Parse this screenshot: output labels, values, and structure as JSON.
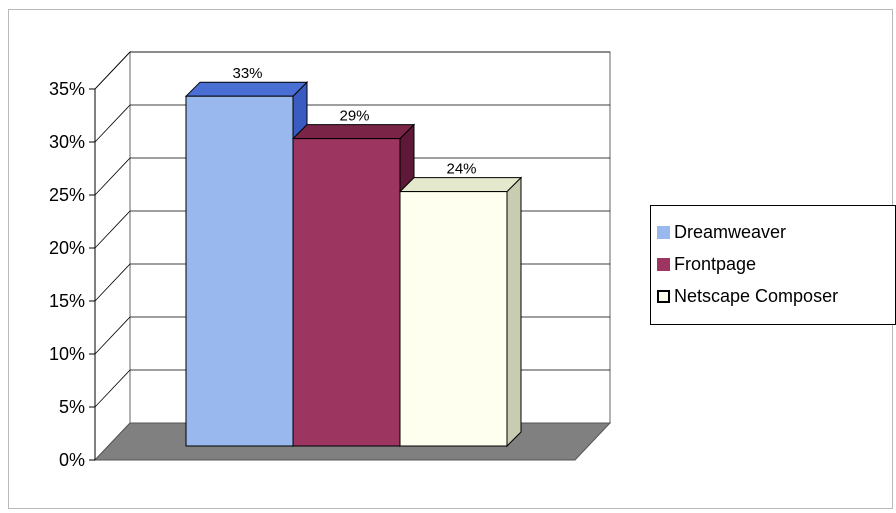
{
  "chart_data": {
    "type": "bar",
    "title": "",
    "xlabel": "",
    "ylabel": "",
    "ylim": [
      0,
      35
    ],
    "yticks": [
      "0%",
      "5%",
      "10%",
      "15%",
      "20%",
      "25%",
      "30%",
      "35%"
    ],
    "grid": true,
    "three_d": true,
    "legend_position": "right",
    "series": [
      {
        "name": "Dreamweaver",
        "value": 33,
        "label": "33%",
        "color": "#99b8ee",
        "side_color": "#3a5bbf",
        "top_color": "#4a6fd4"
      },
      {
        "name": "Frontpage",
        "value": 29,
        "label": "29%",
        "color": "#9c3560",
        "side_color": "#5e1838",
        "top_color": "#7a2448"
      },
      {
        "name": "Netscape Composer",
        "value": 24,
        "label": "24%",
        "color": "#fffff0",
        "side_color": "#c8ccb0",
        "top_color": "#e4e8cc"
      }
    ],
    "floor_color": "#808080",
    "wall_color": "#ffffff",
    "gridline_color": "#000000"
  }
}
